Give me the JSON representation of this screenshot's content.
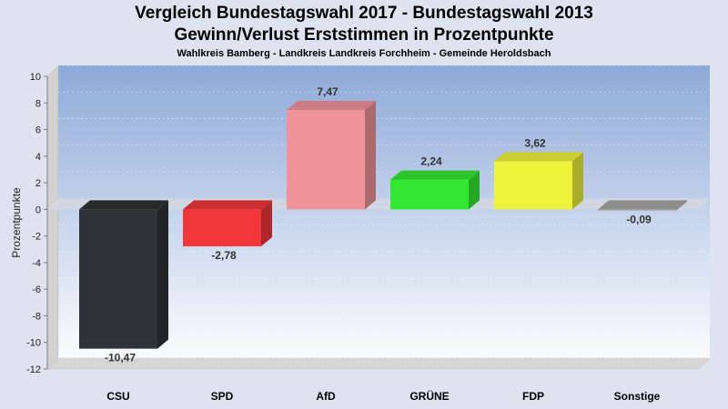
{
  "chart_data": {
    "type": "bar",
    "title": "Vergleich Bundestagswahl 2017 - Bundestagswahl 2013",
    "subtitle": "Gewinn/Verlust Erststimmen in Prozentpunkte",
    "caption": "Wahlkreis Bamberg - Landkreis Landkreis Forchheim - Gemeinde Heroldsbach",
    "xlabel": "",
    "ylabel": "Prozentpunkte",
    "ylim": [
      -12,
      10
    ],
    "yticks": [
      10,
      8,
      6,
      4,
      2,
      0,
      -2,
      -4,
      -6,
      -8,
      -10,
      -12
    ],
    "categories": [
      "CSU",
      "SPD",
      "AfD",
      "GRÜNE",
      "FDP",
      "Sonstige"
    ],
    "values": [
      -10.47,
      -2.78,
      7.47,
      2.24,
      3.62,
      -0.09
    ],
    "value_labels": [
      "-10,47",
      "-2,78",
      "7,47",
      "2,24",
      "3,62",
      "-0,09"
    ],
    "colors": [
      "#2f3236",
      "#f0373c",
      "#ee9499",
      "#33e833",
      "#eef23c",
      "#a6a6a6"
    ],
    "grid": true,
    "legend": "none"
  }
}
